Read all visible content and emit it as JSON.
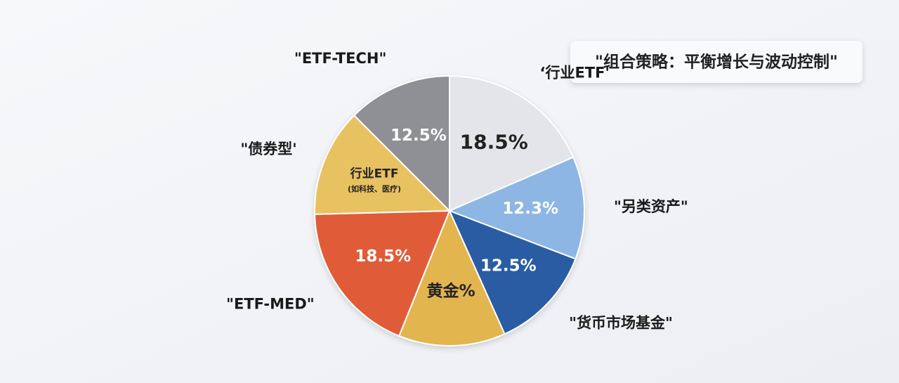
{
  "chart_data": {
    "type": "pie",
    "title": "\"组合策略：平衡增长与波动控制\"",
    "categories": [
      "‘行业ETF'",
      "\"另类资产\"",
      "\"货币市场基金\"",
      null,
      "\"ETF-MED\"",
      "\"债券型'",
      "\"ETF-TECH\""
    ],
    "values": [
      18.5,
      12.3,
      12.5,
      12.8,
      18.5,
      12.9,
      12.5
    ],
    "value_labels": [
      "18.5%",
      "12.3%",
      "12.5%",
      null,
      "18.5%",
      null,
      "12.5%"
    ],
    "inner_labels": [
      null,
      null,
      null,
      "黄金%",
      null,
      "行业ETF",
      null
    ],
    "inner_sublabels": [
      null,
      null,
      null,
      null,
      null,
      "(如科技、医疗)",
      null
    ],
    "colors": [
      "#e3e5ea",
      "#8db6e4",
      "#2c5ba3",
      "#e2b550",
      "#e05b37",
      "#e8c160",
      "#8f9095"
    ]
  }
}
